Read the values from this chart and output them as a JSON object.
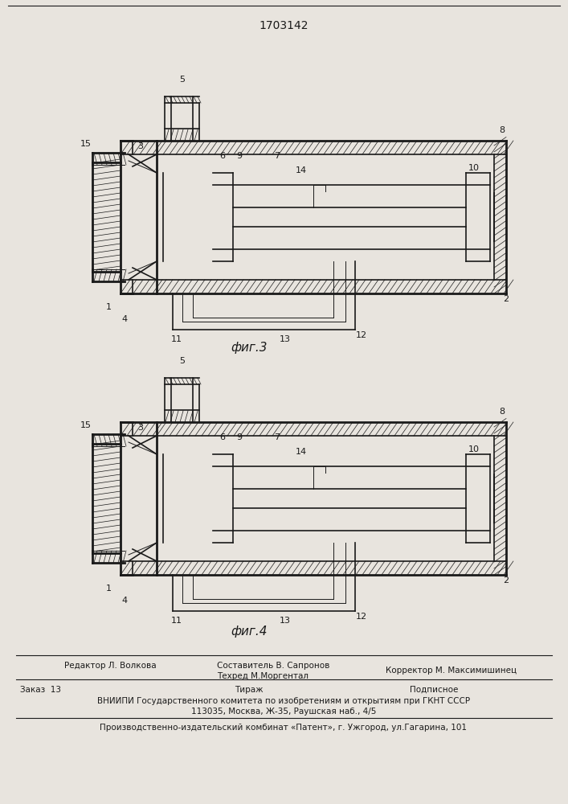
{
  "patent_number": "1703142",
  "fig3_label": "фиг.3",
  "fig4_label": "фиг.4",
  "editor_line": "Редактор Л. Волкова",
  "compiler_line1": "Составитель В. Сапронов",
  "compiler_line2": "Техред М.Моргентал",
  "corrector_line": "Корректор М. Максимишинец",
  "order_line": "Заказ  13",
  "tirazh_line": "Тираж",
  "podpisnoe_line": "Подписное",
  "vnipi_line": "ВНИИПИ Государственного комитета по изобретениям и открытиям при ГКНТ СССР",
  "address_line": "113035, Москва, Ж-35, Раушская наб., 4/5",
  "publisher_line": "Производственно-издательский комбинат «Патент», г. Ужгород, ул.Гагарина, 101",
  "bg_color": "#e8e4de",
  "line_color": "#1a1a1a"
}
